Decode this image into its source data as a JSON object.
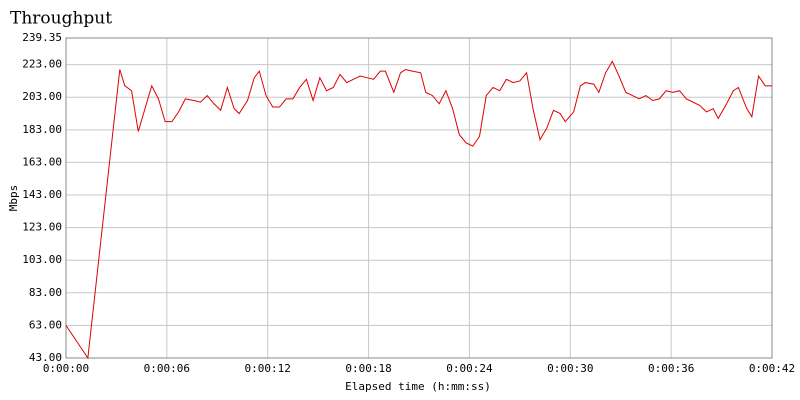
{
  "chart_data": {
    "type": "line",
    "title": "Throughput",
    "x_label": "Elapsed time (h:mm:ss)",
    "y_label": "Mbps",
    "color": "#e00000",
    "grid": true,
    "x": [
      0,
      1.3,
      3.2,
      3.5,
      3.9,
      4.3,
      4.7,
      5.1,
      5.5,
      5.9,
      6.3,
      6.7,
      7.1,
      7.6,
      8.0,
      8.4,
      8.8,
      9.2,
      9.6,
      10.0,
      10.3,
      10.8,
      11.2,
      11.5,
      11.9,
      12.3,
      12.7,
      13.1,
      13.5,
      13.9,
      14.3,
      14.7,
      15.1,
      15.5,
      15.9,
      16.3,
      16.7,
      17.1,
      17.5,
      17.9,
      18.3,
      18.7,
      19.0,
      19.5,
      19.9,
      20.2,
      20.6,
      21.1,
      21.4,
      21.8,
      22.2,
      22.6,
      23.0,
      23.4,
      23.8,
      24.2,
      24.6,
      25.0,
      25.4,
      25.8,
      26.2,
      26.6,
      27.0,
      27.4,
      27.8,
      28.2,
      28.6,
      29.0,
      29.4,
      29.7,
      30.2,
      30.6,
      30.9,
      31.4,
      31.7,
      32.1,
      32.5,
      32.9,
      33.3,
      33.7,
      34.1,
      34.5,
      34.9,
      35.3,
      35.7,
      36.1,
      36.5,
      36.9,
      37.3,
      37.7,
      38.1,
      38.5,
      38.8,
      39.3,
      39.7,
      40.0,
      40.5,
      40.8,
      41.2,
      41.6,
      42.0
    ],
    "values": [
      63,
      43,
      220,
      210,
      207,
      182,
      196,
      210,
      202,
      188,
      188,
      194,
      202,
      201,
      200,
      204,
      199,
      195,
      209,
      196,
      193,
      201,
      215,
      219,
      204,
      197,
      197,
      202,
      202,
      209,
      214,
      201,
      215,
      207,
      209,
      217,
      212,
      214,
      216,
      215,
      214,
      219,
      219,
      206,
      218,
      220,
      219,
      218,
      206,
      204,
      199,
      207,
      196,
      180,
      175,
      173,
      179,
      204,
      209,
      207,
      214,
      212,
      213,
      218,
      195,
      177,
      184,
      195,
      193,
      188,
      194,
      210,
      212,
      211,
      206,
      218,
      225,
      216,
      206,
      204,
      202,
      204,
      201,
      202,
      207,
      206,
      207,
      202,
      200,
      198,
      194,
      196,
      190,
      199,
      207,
      209,
      196,
      191,
      216,
      210,
      210
    ],
    "xlim": [
      0,
      42
    ],
    "xticks": [
      {
        "value": 0,
        "label": "0:00:00"
      },
      {
        "value": 6,
        "label": "0:00:06"
      },
      {
        "value": 12,
        "label": "0:00:12"
      },
      {
        "value": 18,
        "label": "0:00:18"
      },
      {
        "value": 24,
        "label": "0:00:24"
      },
      {
        "value": 30,
        "label": "0:00:30"
      },
      {
        "value": 36,
        "label": "0:00:36"
      },
      {
        "value": 42,
        "label": "0:00:42"
      }
    ],
    "ylim": [
      43,
      239.35
    ],
    "yticks": [
      {
        "value": 43,
        "label": "43.00"
      },
      {
        "value": 63,
        "label": "63.00"
      },
      {
        "value": 83,
        "label": "83.00"
      },
      {
        "value": 103,
        "label": "103.00"
      },
      {
        "value": 123,
        "label": "123.00"
      },
      {
        "value": 143,
        "label": "143.00"
      },
      {
        "value": 163,
        "label": "163.00"
      },
      {
        "value": 183,
        "label": "183.00"
      },
      {
        "value": 203,
        "label": "203.00"
      },
      {
        "value": 223,
        "label": "223.00"
      },
      {
        "value": 239.35,
        "label": "239.35"
      }
    ]
  }
}
